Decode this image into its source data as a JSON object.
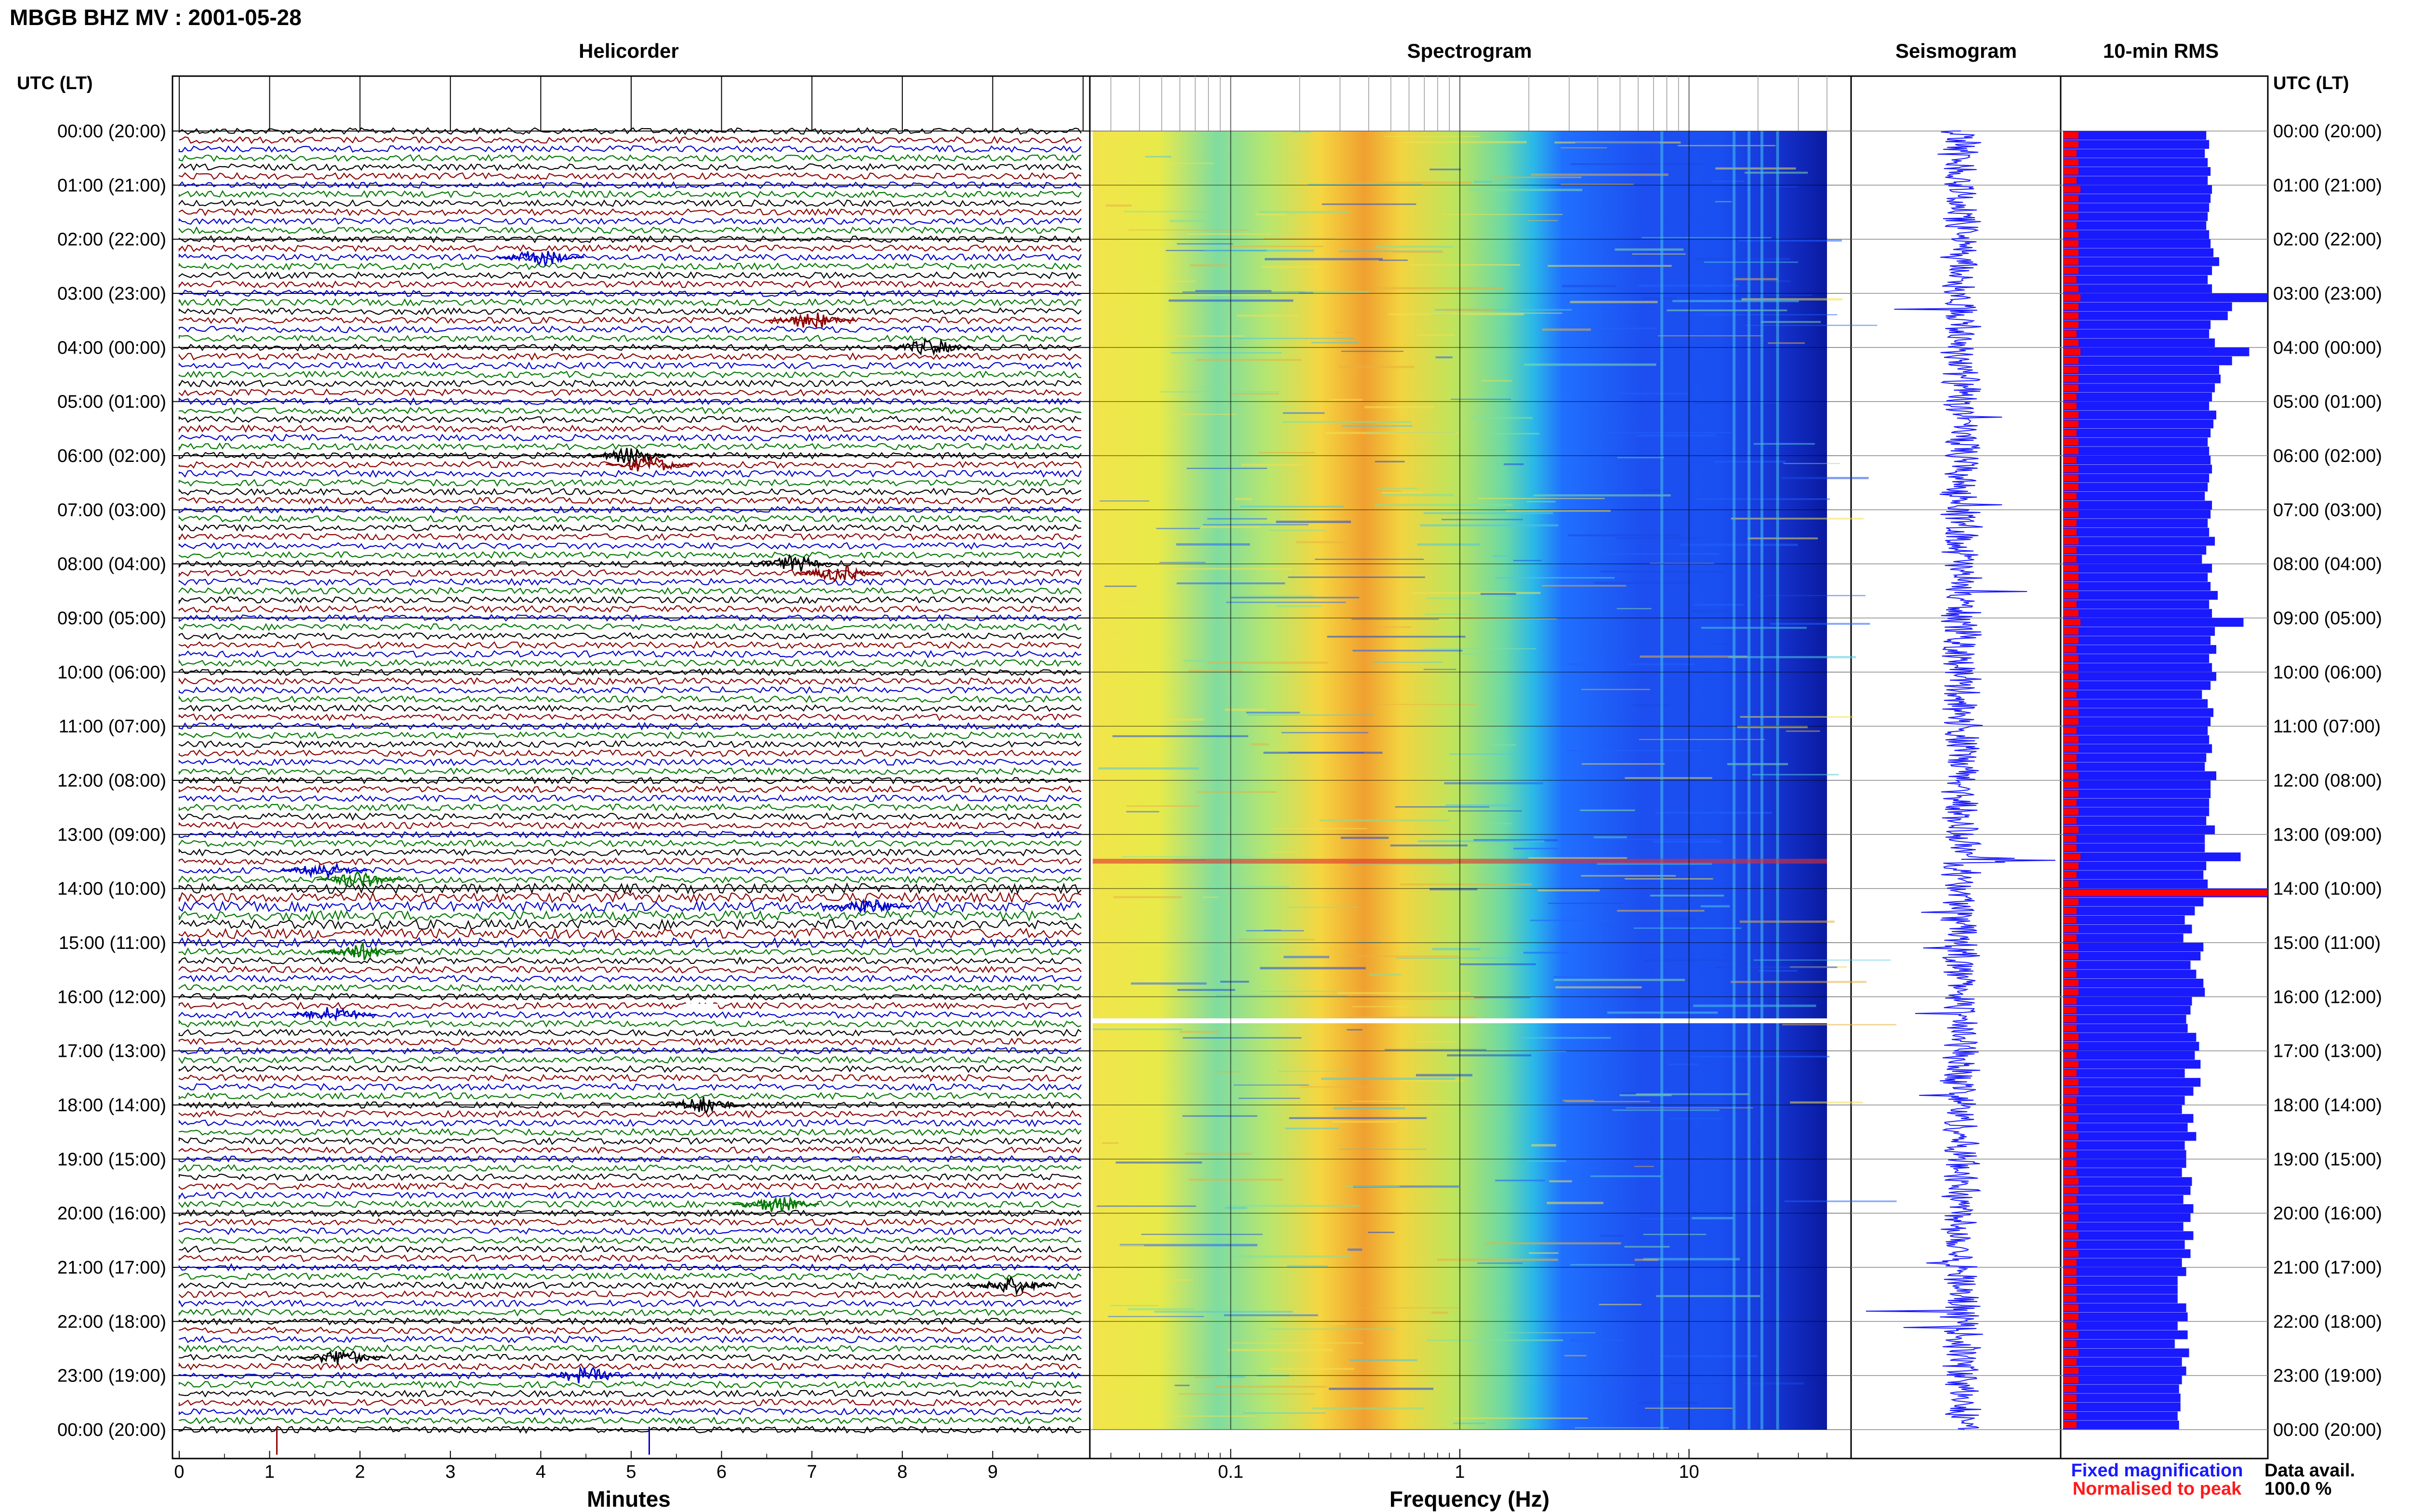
{
  "header": {
    "title": "MBGB BHZ MV : 2001-05-28",
    "time_axis_label": "UTC (LT)"
  },
  "panels": {
    "helicorder": "Helicorder",
    "spectrogram": "Spectrogram",
    "seismogram": "Seismogram",
    "rms": "10-min RMS"
  },
  "time_labels": [
    "00:00 (20:00)",
    "01:00 (21:00)",
    "02:00 (22:00)",
    "03:00 (23:00)",
    "04:00 (00:00)",
    "05:00 (01:00)",
    "06:00 (02:00)",
    "07:00 (03:00)",
    "08:00 (04:00)",
    "09:00 (05:00)",
    "10:00 (06:00)",
    "11:00 (07:00)",
    "12:00 (08:00)",
    "13:00 (09:00)",
    "14:00 (10:00)",
    "15:00 (11:00)",
    "16:00 (12:00)",
    "17:00 (13:00)",
    "18:00 (14:00)",
    "19:00 (15:00)",
    "20:00 (16:00)",
    "21:00 (17:00)",
    "22:00 (18:00)",
    "23:00 (19:00)",
    "00:00 (20:00)"
  ],
  "legend": {
    "fixed": "Fixed magnification",
    "normalised": "Normalised to peak",
    "data_avail_label": "Data avail.",
    "data_avail_value": "100.0 %"
  },
  "colors": {
    "trace_cycle": [
      "#000000",
      "#8b0000",
      "#0000cc",
      "#007700"
    ],
    "rms_fixed": "#1a1aff",
    "rms_normalised": "#ff0000",
    "seismogram": "#1a1aff"
  },
  "chart_data": [
    {
      "type": "line",
      "panel": "helicorder",
      "xlabel": "Minutes",
      "xlim": [
        0,
        10
      ],
      "x_ticks": [
        "0",
        "1",
        "2",
        "3",
        "4",
        "5",
        "6",
        "7",
        "8",
        "9"
      ],
      "rows": 144,
      "row_minutes": 10,
      "events_minute_row": [
        [
          4.0,
          14
        ],
        [
          7.0,
          21
        ],
        [
          8.3,
          24
        ],
        [
          5.0,
          36
        ],
        [
          5.2,
          37
        ],
        [
          6.8,
          48
        ],
        [
          7.3,
          49
        ],
        [
          1.6,
          82
        ],
        [
          2.0,
          83
        ],
        [
          7.6,
          86
        ],
        [
          2.0,
          91
        ],
        [
          1.7,
          98
        ],
        [
          5.8,
          108
        ],
        [
          6.6,
          119
        ],
        [
          4.5,
          138
        ],
        [
          9.2,
          128
        ],
        [
          1.8,
          136
        ]
      ]
    },
    {
      "type": "heatmap",
      "panel": "spectrogram",
      "xlabel": "Frequency (Hz)",
      "xscale": "log",
      "xlim": [
        0.025,
        40
      ],
      "x_ticks": [
        "0.1",
        "1",
        "10"
      ],
      "colormap": "jet",
      "gap_at_utc_hour": 16.4
    },
    {
      "type": "line",
      "panel": "seismogram",
      "colors": "blue"
    },
    {
      "type": "bar",
      "panel": "rms",
      "orientation": "horizontal",
      "series": [
        {
          "name": "Fixed magnification",
          "values": [
            100,
            102,
            99,
            101,
            103,
            101,
            104,
            103,
            102,
            101,
            100,
            102,
            103,
            105,
            109,
            104,
            101,
            104,
            143,
            118,
            115,
            103,
            102,
            106,
            130,
            118,
            109,
            110,
            106,
            104,
            102,
            107,
            105,
            103,
            101,
            102,
            103,
            104,
            102,
            101,
            99,
            104,
            103,
            101,
            102,
            106,
            100,
            97,
            104,
            101,
            103,
            108,
            102,
            104,
            126,
            106,
            103,
            107,
            102,
            104,
            107,
            103,
            97,
            101,
            105,
            103,
            101,
            102,
            104,
            100,
            99,
            107,
            103,
            103,
            102,
            102,
            100,
            106,
            99,
            99,
            124,
            100,
            98,
            101,
            143,
            98,
            92,
            85,
            90,
            84,
            98,
            96,
            89,
            93,
            98,
            99,
            90,
            89,
            86,
            87,
            93,
            95,
            92,
            96,
            85,
            96,
            91,
            85,
            83,
            91,
            87,
            93,
            85,
            86,
            86,
            83,
            90,
            89,
            84,
            91,
            89,
            84,
            91,
            85,
            89,
            83,
            86,
            80,
            80,
            80,
            86,
            87,
            80,
            87,
            78,
            88,
            83,
            86,
            83,
            81,
            82,
            82,
            80,
            81
          ]
        },
        {
          "name": "Normalised to peak",
          "values": [
            8,
            8,
            7,
            8,
            8,
            7,
            9,
            8,
            8,
            8,
            7,
            8,
            8,
            8,
            8,
            8,
            7,
            8,
            9,
            8,
            8,
            8,
            7,
            8,
            9,
            8,
            8,
            8,
            8,
            7,
            7,
            8,
            8,
            7,
            8,
            8,
            7,
            8,
            8,
            8,
            7,
            8,
            8,
            7,
            7,
            8,
            7,
            7,
            8,
            8,
            8,
            8,
            7,
            8,
            9,
            8,
            8,
            7,
            8,
            8,
            8,
            8,
            7,
            8,
            8,
            8,
            7,
            8,
            8,
            7,
            7,
            8,
            8,
            8,
            7,
            8,
            7,
            8,
            7,
            7,
            9,
            8,
            7,
            8,
            100,
            8,
            7,
            7,
            8,
            7,
            8,
            8,
            7,
            7,
            8,
            8,
            7,
            7,
            7,
            7,
            8,
            8,
            7,
            8,
            7,
            8,
            8,
            7,
            7,
            8,
            7,
            8,
            7,
            7,
            7,
            7,
            8,
            8,
            7,
            8,
            8,
            7,
            8,
            7,
            8,
            7,
            7,
            7,
            7,
            7,
            8,
            8,
            7,
            8,
            7,
            8,
            7,
            8,
            8,
            7,
            7,
            7,
            7,
            7
          ]
        }
      ]
    }
  ]
}
